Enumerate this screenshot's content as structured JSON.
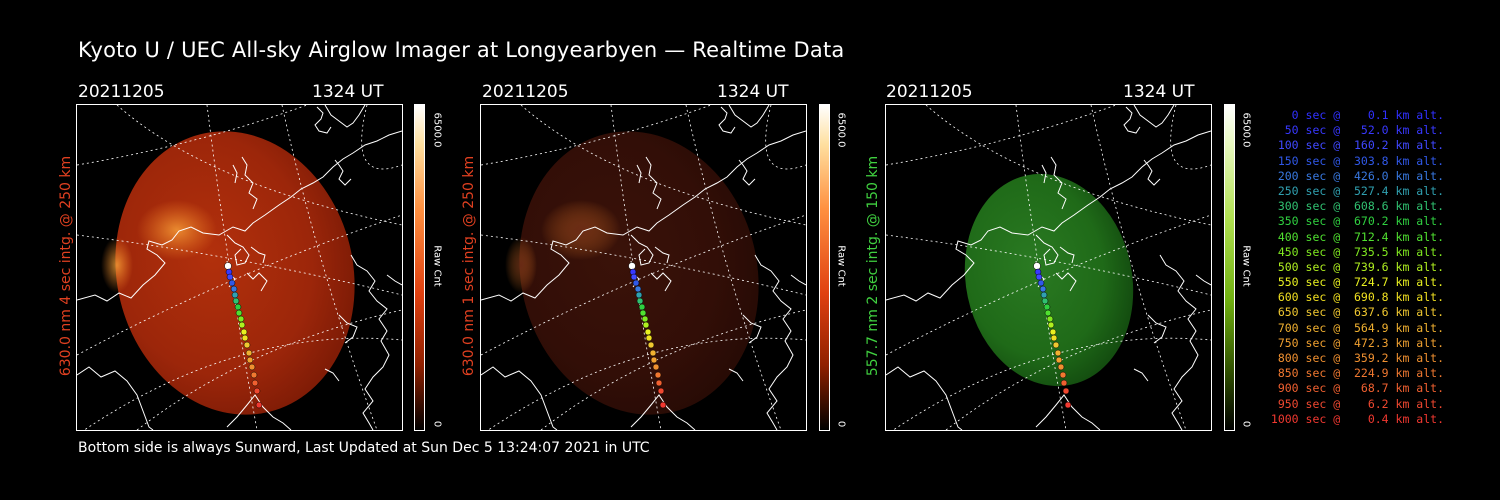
{
  "title": "Kyoto U / UEC All-sky Airglow Imager at Longyearbyen — Realtime Data",
  "footer": "Bottom side is always Sunward, Last Updated at Sun Dec  5 13:24:07 2021 in UTC",
  "panels": [
    {
      "date": "20211205",
      "time": "1324 UT",
      "label": "630.0 nm 4 sec intg. @ 250 km",
      "label_color": "#e04020",
      "cbar_max": "6500.0",
      "cbar_unit": "Raw Cnt",
      "cbar_min": "0",
      "colormap": "red"
    },
    {
      "date": "20211205",
      "time": "1324 UT",
      "label": "630.0 nm 1 sec intg. @ 250 km",
      "label_color": "#e04020",
      "cbar_max": "6500.0",
      "cbar_unit": "Raw Cnt",
      "cbar_min": "0",
      "colormap": "red"
    },
    {
      "date": "20211205",
      "time": "1324 UT",
      "label": "557.7 nm 2 sec intg. @ 150 km",
      "label_color": "#40d040",
      "cbar_max": "6500.0",
      "cbar_unit": "Raw Cnt",
      "cbar_min": "0",
      "colormap": "green"
    }
  ],
  "legend": [
    {
      "text": "   0 sec @    0.1 km alt.",
      "color": "#3030ff"
    },
    {
      "text": "  50 sec @   52.0 km alt.",
      "color": "#3838ff"
    },
    {
      "text": " 100 sec @  160.2 km alt.",
      "color": "#4048ff"
    },
    {
      "text": " 150 sec @  303.8 km alt.",
      "color": "#3058e8"
    },
    {
      "text": " 200 sec @  426.0 km alt.",
      "color": "#3878e0"
    },
    {
      "text": " 250 sec @  527.4 km alt.",
      "color": "#30a0b0"
    },
    {
      "text": " 300 sec @  608.6 km alt.",
      "color": "#30c070"
    },
    {
      "text": " 350 sec @  670.2 km alt.",
      "color": "#30d040"
    },
    {
      "text": " 400 sec @  712.4 km alt.",
      "color": "#50e030"
    },
    {
      "text": " 450 sec @  735.5 km alt.",
      "color": "#80e820"
    },
    {
      "text": " 500 sec @  739.6 km alt.",
      "color": "#b0f020"
    },
    {
      "text": " 550 sec @  724.7 km alt.",
      "color": "#e8f020"
    },
    {
      "text": " 600 sec @  690.8 km alt.",
      "color": "#f0e020"
    },
    {
      "text": " 650 sec @  637.6 km alt.",
      "color": "#f0c830"
    },
    {
      "text": " 700 sec @  564.9 km alt.",
      "color": "#f0b030"
    },
    {
      "text": " 750 sec @  472.3 km alt.",
      "color": "#f0a030"
    },
    {
      "text": " 800 sec @  359.2 km alt.",
      "color": "#f09030"
    },
    {
      "text": " 850 sec @  224.9 km alt.",
      "color": "#f07830"
    },
    {
      "text": " 900 sec @   68.7 km alt.",
      "color": "#f06030"
    },
    {
      "text": " 950 sec @    6.2 km alt.",
      "color": "#f04830"
    },
    {
      "text": "1000 sec @    0.4 km alt.",
      "color": "#f03830"
    }
  ]
}
